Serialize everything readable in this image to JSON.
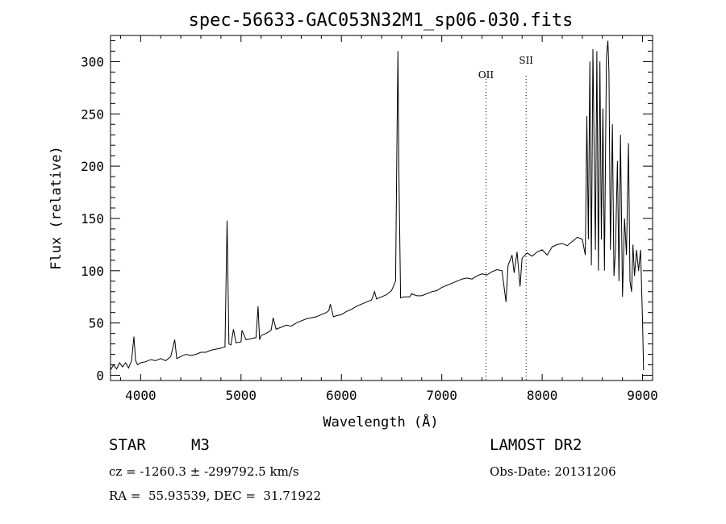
{
  "chart_data": {
    "type": "line",
    "title": "spec-56633-GAC053N32M1_sp06-030.fits",
    "xlabel": "Wavelength (Å)",
    "ylabel": "Flux (relative)",
    "xlim": [
      3700,
      9100
    ],
    "ylim": [
      -5,
      325
    ],
    "xticks": [
      4000,
      5000,
      6000,
      7000,
      8000,
      9000
    ],
    "yticks": [
      0,
      50,
      100,
      150,
      200,
      250,
      300
    ],
    "grid": false,
    "line_color": "#000000",
    "series": [
      {
        "x": [
          3700,
          3730,
          3760,
          3790,
          3820,
          3850,
          3880,
          3910,
          3933,
          3950,
          3970,
          4000,
          4050,
          4100,
          4150,
          4200,
          4250,
          4300,
          4340,
          4360,
          4400,
          4450,
          4500,
          4550,
          4600,
          4650,
          4700,
          4750,
          4800,
          4840,
          4861,
          4880,
          4900,
          4925,
          4950,
          5000,
          5010,
          5050,
          5100,
          5150,
          5170,
          5185,
          5200,
          5250,
          5300,
          5320,
          5350,
          5400,
          5450,
          5500,
          5550,
          5600,
          5650,
          5700,
          5750,
          5800,
          5850,
          5875,
          5890,
          5920,
          5950,
          6000,
          6050,
          6100,
          6150,
          6200,
          6250,
          6300,
          6330,
          6350,
          6400,
          6450,
          6500,
          6540,
          6555,
          6563,
          6572,
          6590,
          6620,
          6650,
          6680,
          6700,
          6750,
          6800,
          6850,
          6900,
          6950,
          7000,
          7050,
          7100,
          7150,
          7200,
          7250,
          7300,
          7350,
          7400,
          7450,
          7500,
          7550,
          7600,
          7640,
          7660,
          7680,
          7700,
          7720,
          7750,
          7780,
          7800,
          7850,
          7900,
          7950,
          8000,
          8050,
          8100,
          8150,
          8200,
          8250,
          8300,
          8350,
          8400,
          8430,
          8445,
          8460,
          8475,
          8490,
          8505,
          8520,
          8530,
          8545,
          8560,
          8575,
          8590,
          8605,
          8620,
          8640,
          8655,
          8665,
          8680,
          8700,
          8715,
          8730,
          8750,
          8765,
          8780,
          8800,
          8820,
          8840,
          8860,
          8875,
          8890,
          8905,
          8920,
          8940,
          8960,
          8980,
          9000,
          9010
        ],
        "y": [
          5,
          10,
          6,
          12,
          8,
          12,
          7,
          14,
          37,
          14,
          10,
          12,
          13,
          15,
          14,
          16,
          14,
          18,
          34,
          16,
          18,
          20,
          19,
          20,
          22,
          22,
          24,
          25,
          26,
          27,
          148,
          30,
          29,
          44,
          31,
          32,
          43,
          34,
          35,
          36,
          66,
          34,
          38,
          40,
          43,
          55,
          44,
          46,
          48,
          47,
          50,
          52,
          54,
          55,
          56,
          58,
          60,
          62,
          68,
          56,
          57,
          58,
          61,
          63,
          66,
          68,
          70,
          72,
          80,
          73,
          75,
          77,
          81,
          90,
          240,
          310,
          200,
          74,
          75,
          75,
          75,
          78,
          76,
          76,
          78,
          80,
          81,
          84,
          86,
          88,
          90,
          92,
          93,
          92,
          95,
          97,
          96,
          99,
          101,
          100,
          70,
          105,
          110,
          115,
          98,
          118,
          85,
          112,
          117,
          114,
          118,
          120,
          115,
          123,
          125,
          126,
          124,
          128,
          132,
          130,
          115,
          248,
          130,
          300,
          105,
          312,
          200,
          120,
          310,
          100,
          300,
          130,
          255,
          100,
          305,
          320,
          290,
          120,
          240,
          95,
          120,
          205,
          90,
          230,
          75,
          150,
          115,
          222,
          90,
          80,
          125,
          95,
          120,
          100,
          120,
          50,
          5
        ]
      }
    ],
    "annotations": [
      {
        "label": "OII",
        "x": 7440
      },
      {
        "label": "SII",
        "x": 7840
      }
    ]
  },
  "footer": {
    "object_class": "STAR",
    "subclass": "M3",
    "survey": "LAMOST DR2",
    "cz": "cz = -1260.3 ± -299792.5 km/s",
    "obs_date": "Obs-Date: 20131206",
    "radec": "RA =  55.93539, DEC =  31.71922"
  }
}
